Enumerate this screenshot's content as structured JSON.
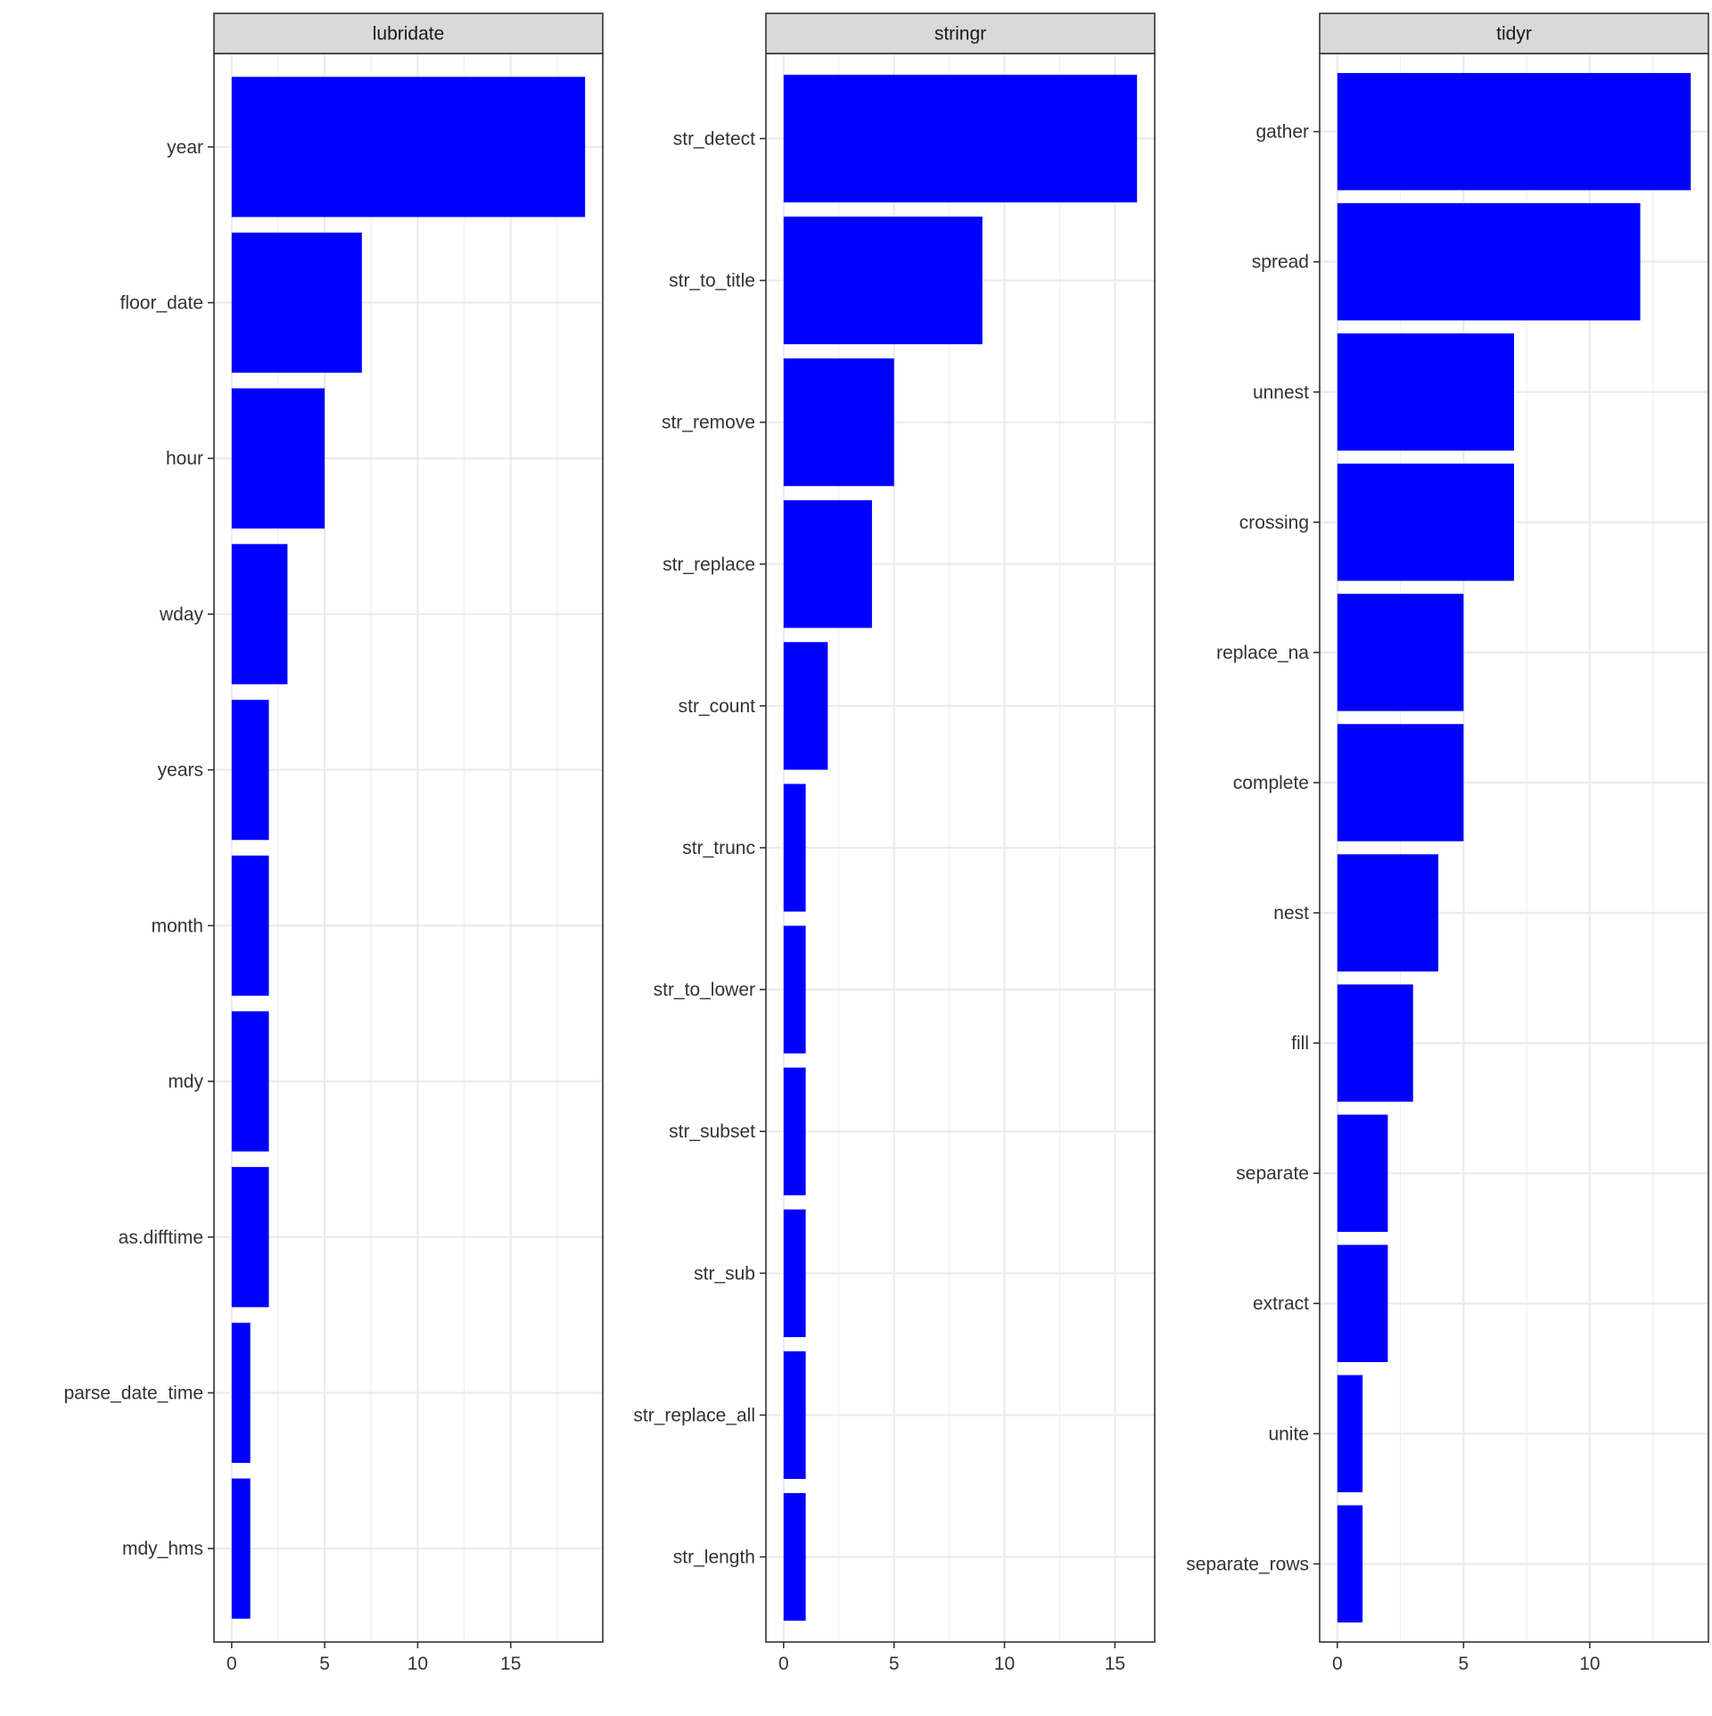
{
  "chart_data": [
    {
      "type": "bar",
      "orientation": "horizontal",
      "facet": "lubridate",
      "categories": [
        "year",
        "floor_date",
        "hour",
        "wday",
        "years",
        "month",
        "mdy",
        "as.difftime",
        "parse_date_time",
        "mdy_hms"
      ],
      "values": [
        19,
        7,
        5,
        3,
        2,
        2,
        2,
        2,
        1,
        1
      ],
      "xlim": [
        -0.95,
        19.95
      ],
      "xticks": [
        0,
        5,
        10,
        15
      ],
      "xlabel": "",
      "ylabel": "",
      "grid": true,
      "bar_color": "#0000ff"
    },
    {
      "type": "bar",
      "orientation": "horizontal",
      "facet": "stringr",
      "categories": [
        "str_detect",
        "str_to_title",
        "str_remove",
        "str_replace",
        "str_count",
        "str_trunc",
        "str_to_lower",
        "str_subset",
        "str_sub",
        "str_replace_all",
        "str_length"
      ],
      "values": [
        16,
        9,
        5,
        4,
        2,
        1,
        1,
        1,
        1,
        1,
        1
      ],
      "xlim": [
        -0.8,
        16.8
      ],
      "xticks": [
        0,
        5,
        10,
        15
      ],
      "xlabel": "",
      "ylabel": "",
      "grid": true,
      "bar_color": "#0000ff"
    },
    {
      "type": "bar",
      "orientation": "horizontal",
      "facet": "tidyr",
      "categories": [
        "gather",
        "spread",
        "unnest",
        "crossing",
        "replace_na",
        "complete",
        "nest",
        "fill",
        "separate",
        "extract",
        "unite",
        "separate_rows"
      ],
      "values": [
        14,
        12,
        7,
        7,
        5,
        5,
        4,
        3,
        2,
        2,
        1,
        1
      ],
      "xlim": [
        -0.7,
        14.7
      ],
      "xticks": [
        0,
        5,
        10
      ],
      "xlabel": "",
      "ylabel": "",
      "grid": true,
      "bar_color": "#0000ff"
    }
  ]
}
